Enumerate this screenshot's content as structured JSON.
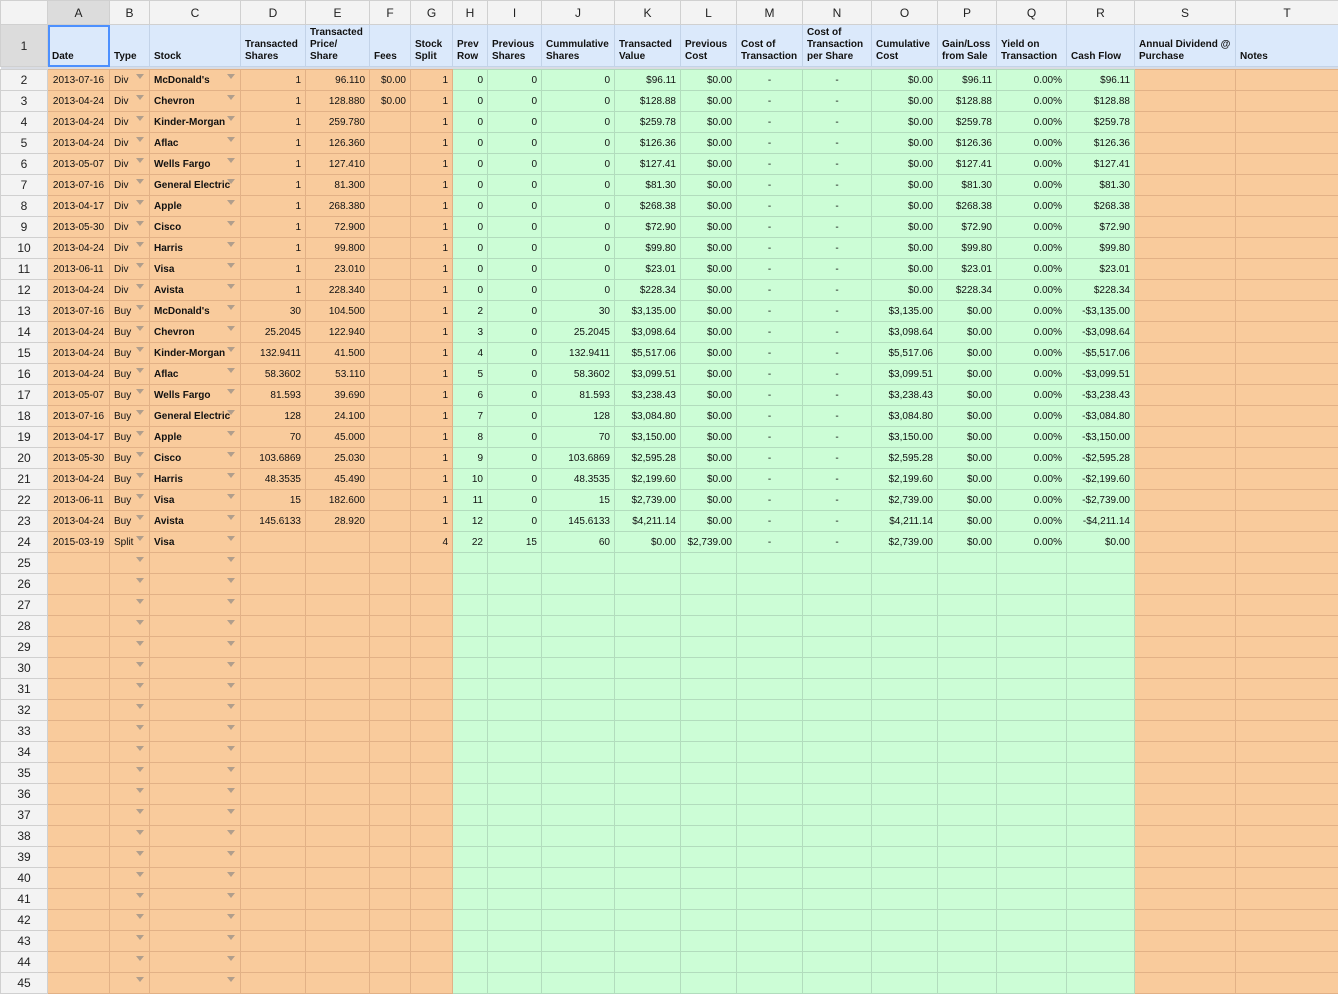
{
  "columns": [
    "A",
    "B",
    "C",
    "D",
    "E",
    "F",
    "G",
    "H",
    "I",
    "J",
    "K",
    "L",
    "M",
    "N",
    "O",
    "P",
    "Q",
    "R",
    "S",
    "T"
  ],
  "headers": [
    "Date",
    "Type",
    "Stock",
    "Transacted Shares",
    "Transacted Price/ Share",
    "Fees",
    "Stock Split",
    "Prev Row",
    "Previous Shares",
    "Cummulative Shares",
    "Transacted Value",
    "Previous Cost",
    "Cost of Transaction",
    "Cost of Transaction per Share",
    "Cumulative Cost",
    "Gain/Loss from Sale",
    "Yield on Transaction",
    "Cash Flow",
    "Annual Dividend @ Purchase",
    "Notes"
  ],
  "row_numbers": [
    1,
    2,
    3,
    4,
    5,
    6,
    7,
    8,
    9,
    10,
    11,
    12,
    13,
    14,
    15,
    16,
    17,
    18,
    19,
    20,
    21,
    22,
    23,
    24,
    25,
    26,
    27,
    28,
    29,
    30,
    31,
    32,
    33,
    34,
    35,
    36,
    37,
    38,
    39,
    40,
    41,
    42,
    43,
    44,
    45
  ],
  "colors": {
    "input_fill": "#f9cb9c",
    "computed_fill": "#ccfdd6",
    "header_fill": "#dbe9fb",
    "selection": "#4d90fe"
  },
  "selected_cell": "A1",
  "rows": [
    [
      "2013-07-16",
      "Div",
      "McDonald's",
      "1",
      "96.110",
      "$0.00",
      "1",
      "0",
      "0",
      "0",
      "$96.11",
      "$0.00",
      "-",
      "-",
      "$0.00",
      "$96.11",
      "0.00%",
      "$96.11",
      "",
      ""
    ],
    [
      "2013-04-24",
      "Div",
      "Chevron",
      "1",
      "128.880",
      "$0.00",
      "1",
      "0",
      "0",
      "0",
      "$128.88",
      "$0.00",
      "-",
      "-",
      "$0.00",
      "$128.88",
      "0.00%",
      "$128.88",
      "",
      ""
    ],
    [
      "2013-04-24",
      "Div",
      "Kinder-Morgan",
      "1",
      "259.780",
      "",
      "1",
      "0",
      "0",
      "0",
      "$259.78",
      "$0.00",
      "-",
      "-",
      "$0.00",
      "$259.78",
      "0.00%",
      "$259.78",
      "",
      ""
    ],
    [
      "2013-04-24",
      "Div",
      "Aflac",
      "1",
      "126.360",
      "",
      "1",
      "0",
      "0",
      "0",
      "$126.36",
      "$0.00",
      "-",
      "-",
      "$0.00",
      "$126.36",
      "0.00%",
      "$126.36",
      "",
      ""
    ],
    [
      "2013-05-07",
      "Div",
      "Wells Fargo",
      "1",
      "127.410",
      "",
      "1",
      "0",
      "0",
      "0",
      "$127.41",
      "$0.00",
      "-",
      "-",
      "$0.00",
      "$127.41",
      "0.00%",
      "$127.41",
      "",
      ""
    ],
    [
      "2013-07-16",
      "Div",
      "General Electric",
      "1",
      "81.300",
      "",
      "1",
      "0",
      "0",
      "0",
      "$81.30",
      "$0.00",
      "-",
      "-",
      "$0.00",
      "$81.30",
      "0.00%",
      "$81.30",
      "",
      ""
    ],
    [
      "2013-04-17",
      "Div",
      "Apple",
      "1",
      "268.380",
      "",
      "1",
      "0",
      "0",
      "0",
      "$268.38",
      "$0.00",
      "-",
      "-",
      "$0.00",
      "$268.38",
      "0.00%",
      "$268.38",
      "",
      ""
    ],
    [
      "2013-05-30",
      "Div",
      "Cisco",
      "1",
      "72.900",
      "",
      "1",
      "0",
      "0",
      "0",
      "$72.90",
      "$0.00",
      "-",
      "-",
      "$0.00",
      "$72.90",
      "0.00%",
      "$72.90",
      "",
      ""
    ],
    [
      "2013-04-24",
      "Div",
      "Harris",
      "1",
      "99.800",
      "",
      "1",
      "0",
      "0",
      "0",
      "$99.80",
      "$0.00",
      "-",
      "-",
      "$0.00",
      "$99.80",
      "0.00%",
      "$99.80",
      "",
      ""
    ],
    [
      "2013-06-11",
      "Div",
      "Visa",
      "1",
      "23.010",
      "",
      "1",
      "0",
      "0",
      "0",
      "$23.01",
      "$0.00",
      "-",
      "-",
      "$0.00",
      "$23.01",
      "0.00%",
      "$23.01",
      "",
      ""
    ],
    [
      "2013-04-24",
      "Div",
      "Avista",
      "1",
      "228.340",
      "",
      "1",
      "0",
      "0",
      "0",
      "$228.34",
      "$0.00",
      "-",
      "-",
      "$0.00",
      "$228.34",
      "0.00%",
      "$228.34",
      "",
      ""
    ],
    [
      "2013-07-16",
      "Buy",
      "McDonald's",
      "30",
      "104.500",
      "",
      "1",
      "2",
      "0",
      "30",
      "$3,135.00",
      "$0.00",
      "-",
      "-",
      "$3,135.00",
      "$0.00",
      "0.00%",
      "-$3,135.00",
      "",
      ""
    ],
    [
      "2013-04-24",
      "Buy",
      "Chevron",
      "25.2045",
      "122.940",
      "",
      "1",
      "3",
      "0",
      "25.2045",
      "$3,098.64",
      "$0.00",
      "-",
      "-",
      "$3,098.64",
      "$0.00",
      "0.00%",
      "-$3,098.64",
      "",
      ""
    ],
    [
      "2013-04-24",
      "Buy",
      "Kinder-Morgan",
      "132.9411",
      "41.500",
      "",
      "1",
      "4",
      "0",
      "132.9411",
      "$5,517.06",
      "$0.00",
      "-",
      "-",
      "$5,517.06",
      "$0.00",
      "0.00%",
      "-$5,517.06",
      "",
      ""
    ],
    [
      "2013-04-24",
      "Buy",
      "Aflac",
      "58.3602",
      "53.110",
      "",
      "1",
      "5",
      "0",
      "58.3602",
      "$3,099.51",
      "$0.00",
      "-",
      "-",
      "$3,099.51",
      "$0.00",
      "0.00%",
      "-$3,099.51",
      "",
      ""
    ],
    [
      "2013-05-07",
      "Buy",
      "Wells Fargo",
      "81.593",
      "39.690",
      "",
      "1",
      "6",
      "0",
      "81.593",
      "$3,238.43",
      "$0.00",
      "-",
      "-",
      "$3,238.43",
      "$0.00",
      "0.00%",
      "-$3,238.43",
      "",
      ""
    ],
    [
      "2013-07-16",
      "Buy",
      "General Electric",
      "128",
      "24.100",
      "",
      "1",
      "7",
      "0",
      "128",
      "$3,084.80",
      "$0.00",
      "-",
      "-",
      "$3,084.80",
      "$0.00",
      "0.00%",
      "-$3,084.80",
      "",
      ""
    ],
    [
      "2013-04-17",
      "Buy",
      "Apple",
      "70",
      "45.000",
      "",
      "1",
      "8",
      "0",
      "70",
      "$3,150.00",
      "$0.00",
      "-",
      "-",
      "$3,150.00",
      "$0.00",
      "0.00%",
      "-$3,150.00",
      "",
      ""
    ],
    [
      "2013-05-30",
      "Buy",
      "Cisco",
      "103.6869",
      "25.030",
      "",
      "1",
      "9",
      "0",
      "103.6869",
      "$2,595.28",
      "$0.00",
      "-",
      "-",
      "$2,595.28",
      "$0.00",
      "0.00%",
      "-$2,595.28",
      "",
      ""
    ],
    [
      "2013-04-24",
      "Buy",
      "Harris",
      "48.3535",
      "45.490",
      "",
      "1",
      "10",
      "0",
      "48.3535",
      "$2,199.60",
      "$0.00",
      "-",
      "-",
      "$2,199.60",
      "$0.00",
      "0.00%",
      "-$2,199.60",
      "",
      ""
    ],
    [
      "2013-06-11",
      "Buy",
      "Visa",
      "15",
      "182.600",
      "",
      "1",
      "11",
      "0",
      "15",
      "$2,739.00",
      "$0.00",
      "-",
      "-",
      "$2,739.00",
      "$0.00",
      "0.00%",
      "-$2,739.00",
      "",
      ""
    ],
    [
      "2013-04-24",
      "Buy",
      "Avista",
      "145.6133",
      "28.920",
      "",
      "1",
      "12",
      "0",
      "145.6133",
      "$4,211.14",
      "$0.00",
      "-",
      "-",
      "$4,211.14",
      "$0.00",
      "0.00%",
      "-$4,211.14",
      "",
      ""
    ],
    [
      "2015-03-19",
      "Split",
      "Visa",
      "",
      "",
      "",
      "4",
      "22",
      "15",
      "60",
      "$0.00",
      "$2,739.00",
      "-",
      "-",
      "$2,739.00",
      "$0.00",
      "0.00%",
      "$0.00",
      "",
      ""
    ]
  ]
}
